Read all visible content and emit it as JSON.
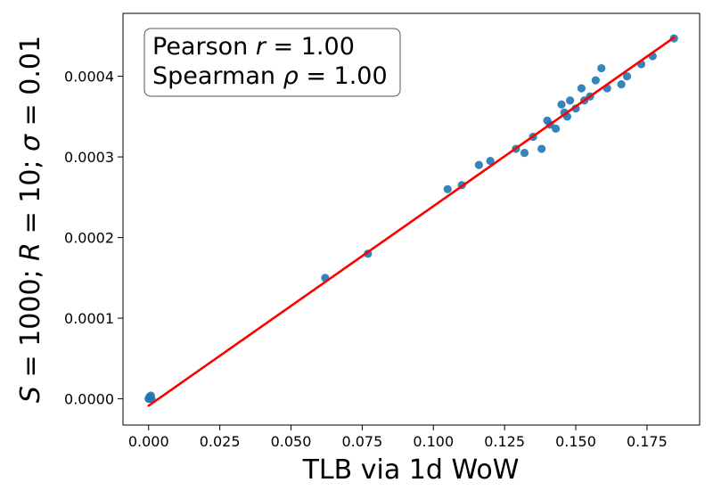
{
  "chart_data": {
    "type": "scatter",
    "title": "",
    "xlabel": "TLB via 1d WoW",
    "ylabel": "S = 1000; R = 10; σ = 0.01",
    "ylabel_parts": {
      "s_var": "S",
      "s_eq": " = 1000; ",
      "r_var": "R",
      "r_eq": " = 10; ",
      "sigma_var": "σ",
      "sigma_eq": " = 0.01"
    },
    "xlim": [
      -0.009,
      0.1935
    ],
    "ylim": [
      -3.25e-05,
      0.000478
    ],
    "xticks": [
      0.0,
      0.025,
      0.05,
      0.075,
      0.1,
      0.125,
      0.15,
      0.175
    ],
    "xtick_labels": [
      "0.000",
      "0.025",
      "0.050",
      "0.075",
      "0.100",
      "0.125",
      "0.150",
      "0.175"
    ],
    "yticks": [
      0.0,
      0.0001,
      0.0002,
      0.0003,
      0.0004
    ],
    "ytick_labels": [
      "0.0000",
      "0.0001",
      "0.0002",
      "0.0003",
      "0.0004"
    ],
    "annotation": {
      "line1_prefix": "Pearson ",
      "line1_var": "r",
      "line1_suffix": " = 1.00",
      "line2_prefix": "Spearman ",
      "line2_var": "ρ",
      "line2_suffix": " = 1.00",
      "placement": "top-left"
    },
    "series": [
      {
        "name": "points",
        "color": "#1f77b4",
        "points": [
          [
            0.0,
            0.0
          ],
          [
            0.0005,
            1.5e-06
          ],
          [
            0.001,
            0.0
          ],
          [
            0.0008,
            4e-06
          ],
          [
            0.0003,
            2.5e-06
          ],
          [
            0.1845,
            0.000447
          ],
          [
            0.177,
            0.000425
          ],
          [
            0.173,
            0.000415
          ],
          [
            0.168,
            0.0004
          ],
          [
            0.166,
            0.00039
          ],
          [
            0.161,
            0.000385
          ],
          [
            0.159,
            0.00041
          ],
          [
            0.157,
            0.000395
          ],
          [
            0.155,
            0.000375
          ],
          [
            0.153,
            0.00037
          ],
          [
            0.152,
            0.000385
          ],
          [
            0.15,
            0.00036
          ],
          [
            0.148,
            0.00037
          ],
          [
            0.147,
            0.00035
          ],
          [
            0.146,
            0.000355
          ],
          [
            0.145,
            0.000365
          ],
          [
            0.143,
            0.000335
          ],
          [
            0.141,
            0.00034
          ],
          [
            0.14,
            0.000345
          ],
          [
            0.138,
            0.00031
          ],
          [
            0.135,
            0.000325
          ],
          [
            0.132,
            0.000305
          ],
          [
            0.129,
            0.00031
          ],
          [
            0.12,
            0.000295
          ],
          [
            0.116,
            0.00029
          ],
          [
            0.11,
            0.000265
          ],
          [
            0.105,
            0.00026
          ],
          [
            0.077,
            0.00018
          ],
          [
            0.062,
            0.00015
          ]
        ]
      }
    ],
    "fit_line": {
      "name": "regression",
      "color": "#ff0000",
      "x": [
        0.0,
        0.1845
      ],
      "y": [
        -8.5e-06,
        0.000448
      ]
    }
  }
}
